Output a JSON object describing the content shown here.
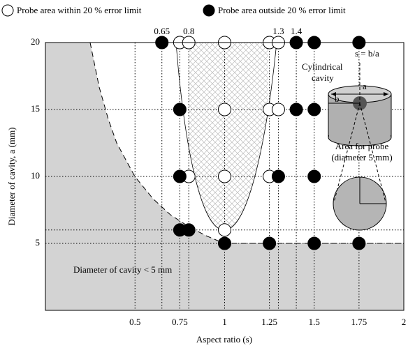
{
  "chart_data": {
    "type": "scatter",
    "title_legend_note": null,
    "x_label": "Aspect ratio (s)",
    "y_label": "Diameter of cavity, a (mm)",
    "xlim": [
      0,
      2
    ],
    "ylim": [
      0,
      20
    ],
    "xticks": [
      0.5,
      0.75,
      1,
      1.25,
      1.5,
      1.75,
      2
    ],
    "yticks": [
      5,
      10,
      15,
      20
    ],
    "grid": true,
    "reference_x": [
      0.65,
      0.8,
      1.3,
      1.4
    ],
    "reference_y": [
      6
    ],
    "series": [
      {
        "name": "Probe area within 20 % error limit",
        "color": "#ffffff",
        "x": [
          0.75,
          0.8,
          1,
          1.25,
          1.3,
          1,
          1.25,
          1.3,
          0.8,
          1,
          1.25,
          1
        ],
        "values": [
          20,
          20,
          20,
          20,
          20,
          15,
          15,
          15,
          10,
          10,
          10,
          6
        ]
      },
      {
        "name": "Probe area outside 20 % error limit",
        "color": "#000000",
        "x": [
          0.65,
          1.4,
          1.5,
          1.75,
          0.75,
          1.4,
          1.5,
          0.75,
          1.3,
          1.5,
          0.75,
          0.8,
          1,
          1.25,
          1.5,
          1.75
        ],
        "values": [
          20,
          20,
          20,
          20,
          15,
          15,
          15,
          10,
          10,
          10,
          6,
          6,
          5,
          5,
          5,
          5
        ]
      }
    ],
    "annotations": [
      "Diameter of cavity < 5 mm",
      "s = b/a",
      "Cylindrical",
      "cavity",
      "a",
      "b",
      "Area for probe",
      "(diameter 5 mm)"
    ]
  }
}
